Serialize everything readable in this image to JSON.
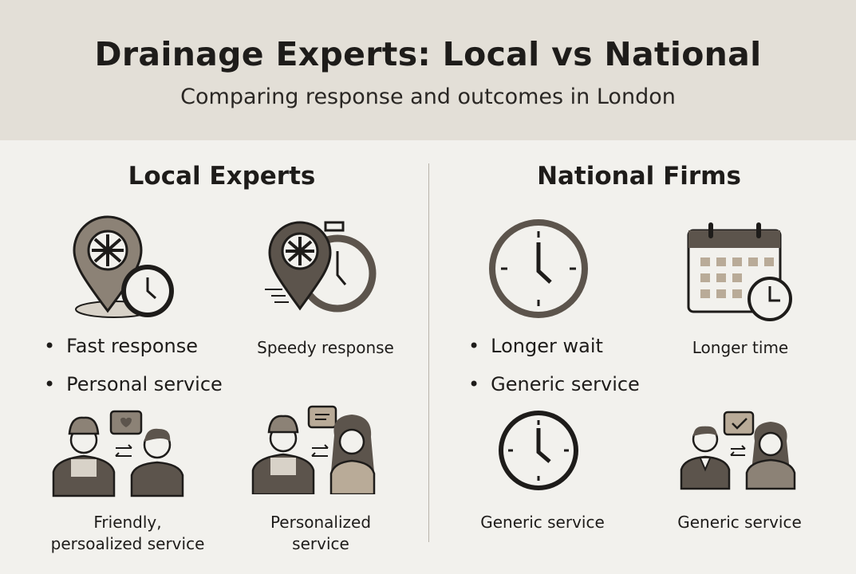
{
  "header": {
    "title": "Drainage Experts: Local vs National",
    "subtitle": "Comparing response and outcomes in London"
  },
  "local": {
    "heading": "Local Experts",
    "bullets": [
      "Fast response",
      "Personal service"
    ],
    "icons": [
      {
        "icon": "location-pin-clock-icon",
        "caption": ""
      },
      {
        "icon": "stopwatch-pin-icon",
        "caption": "Speedy response"
      },
      {
        "icon": "worker-customer-heart-icon",
        "caption_lines": [
          "Friendly,",
          "persoalized service"
        ]
      },
      {
        "icon": "worker-customer-chat-icon",
        "caption_lines": [
          "Personalized",
          "service"
        ]
      }
    ]
  },
  "national": {
    "heading": "National Firms",
    "bullets": [
      "Longer wait",
      "Generic service"
    ],
    "icons": [
      {
        "icon": "clock-icon",
        "caption": ""
      },
      {
        "icon": "calendar-clock-icon",
        "caption": "Longer time"
      },
      {
        "icon": "clock-icon",
        "caption": "Generic service"
      },
      {
        "icon": "staff-customer-check-icon",
        "caption": "Generic service"
      }
    ]
  },
  "colors": {
    "header_bg": "#e3dfd7",
    "background": "#f2f1ed",
    "icon_fill": "#8c8276",
    "icon_dark": "#5c544c",
    "outline": "#1e1c1a"
  }
}
